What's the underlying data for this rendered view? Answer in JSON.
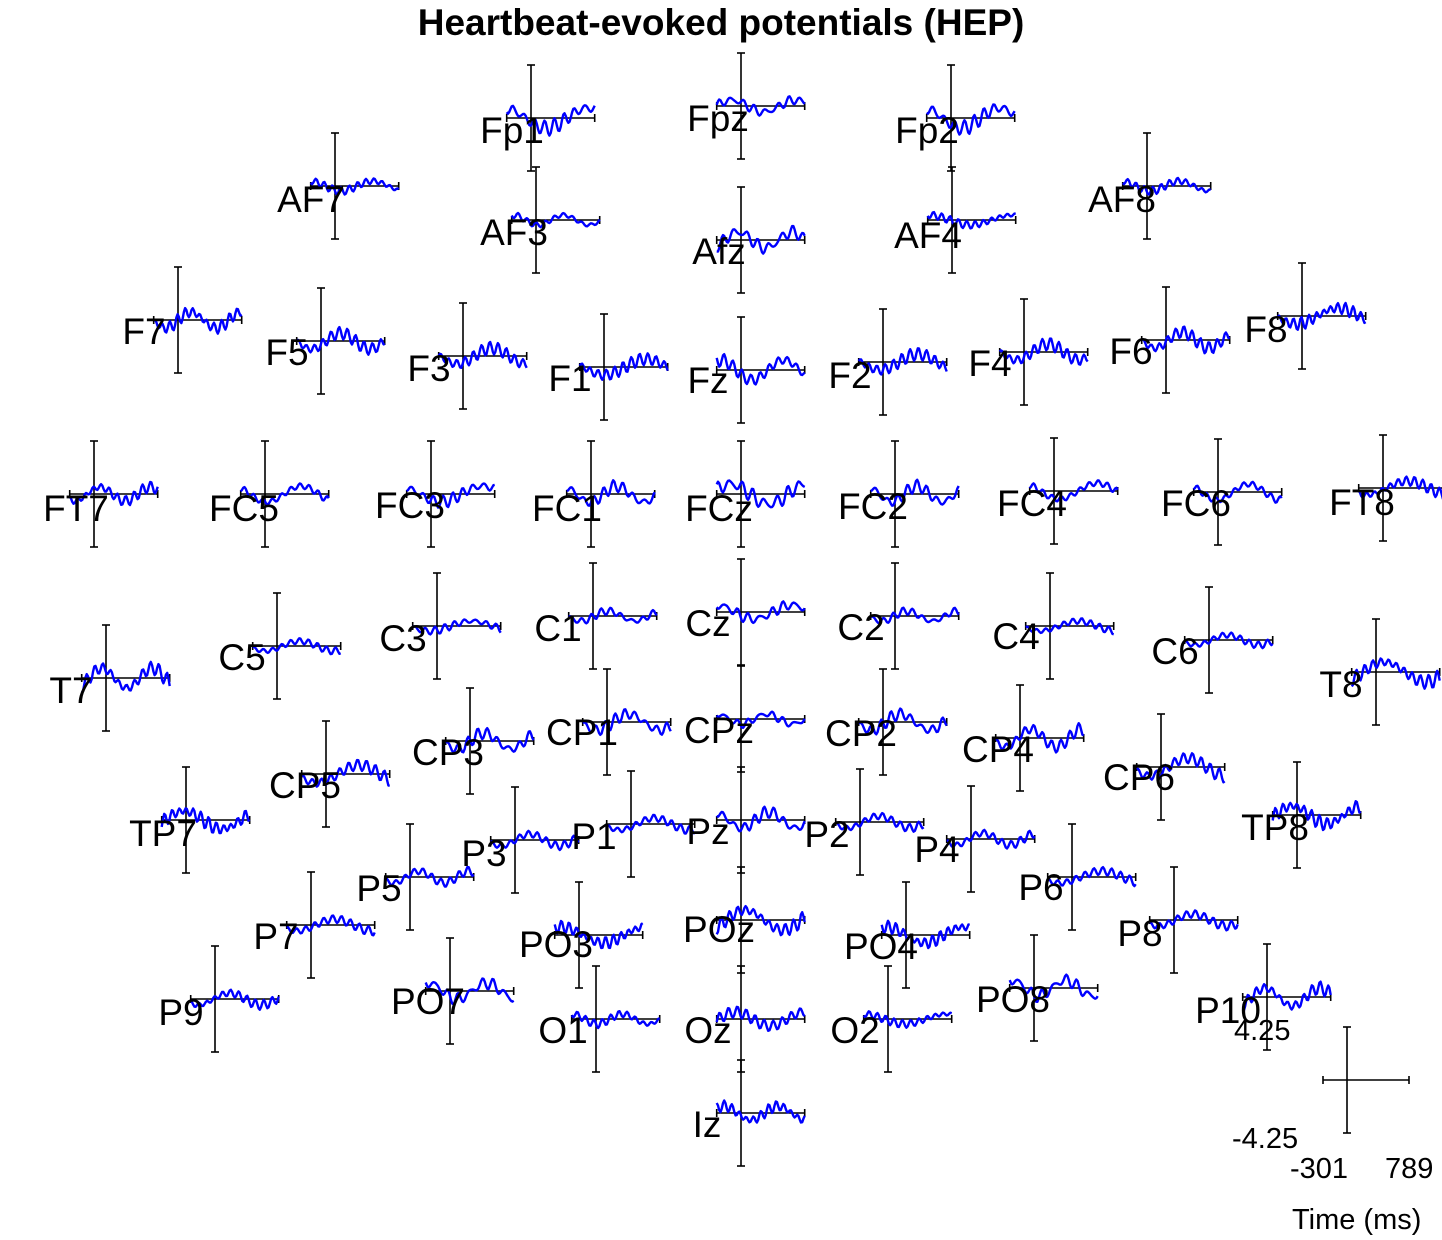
{
  "title": "Heartbeat-evoked potentials (HEP)",
  "chart_data": {
    "type": "line",
    "title": "Heartbeat-evoked potentials (HEP)",
    "xlabel": "Time (ms)",
    "xlim": [
      -301,
      789
    ],
    "ylim": [
      -4.25,
      4.25
    ],
    "line_color": "#0000ff",
    "axis_color": "#000000",
    "scale_bar": {
      "x_min_label": "-301",
      "x_max_label": "789",
      "y_max_label": "4.25",
      "y_min_label": "-4.25",
      "xlabel": "Time (ms)"
    },
    "channels": [
      "Fp1",
      "Fpz",
      "Fp2",
      "AF7",
      "AF3",
      "Afz",
      "AF4",
      "AF8",
      "F7",
      "F5",
      "F3",
      "F1",
      "Fz",
      "F2",
      "F4",
      "F6",
      "F8",
      "FT7",
      "FC5",
      "FC3",
      "FC1",
      "FCz",
      "FC2",
      "FC4",
      "FC6",
      "FT8",
      "T7",
      "C5",
      "C3",
      "C1",
      "Cz",
      "C2",
      "C4",
      "C6",
      "T8",
      "CP5",
      "CP3",
      "CP1",
      "CPz",
      "CP2",
      "CP4",
      "CP6",
      "TP7",
      "TP8",
      "P9",
      "P7",
      "P5",
      "P3",
      "P1",
      "Pz",
      "P2",
      "P4",
      "P6",
      "P8",
      "P10",
      "PO7",
      "PO3",
      "POz",
      "PO4",
      "PO8",
      "O1",
      "Oz",
      "O2",
      "Iz"
    ]
  }
}
